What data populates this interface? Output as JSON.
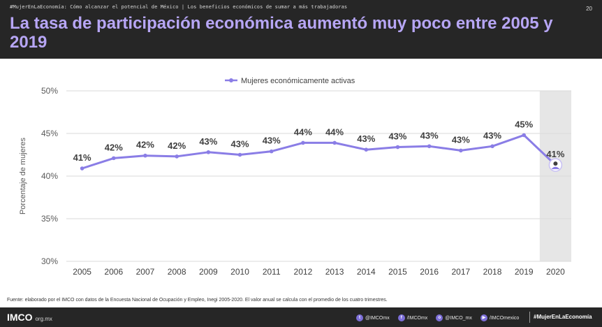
{
  "header": {
    "crumb": "#MujerEnLaEconomía: Cómo alcanzar el potencial de México | Los beneficios económicos de sumar a más trabajadoras",
    "page_number": "20",
    "title": "La tasa de participación económica aumentó muy poco entre 2005 y 2019"
  },
  "chart_data": {
    "type": "line",
    "title": "",
    "xlabel": "",
    "ylabel": "Porcentaje de mujeres",
    "legend_position": "top-center",
    "categories": [
      "2005",
      "2006",
      "2007",
      "2008",
      "2009",
      "2010",
      "2011",
      "2012",
      "2013",
      "2014",
      "2015",
      "2016",
      "2017",
      "2018",
      "2019",
      "2020"
    ],
    "series": [
      {
        "name": "Mujeres económicamente activas",
        "color": "#8a7de6",
        "values": [
          40.9,
          42.1,
          42.4,
          42.3,
          42.8,
          42.5,
          42.9,
          43.9,
          43.9,
          43.1,
          43.4,
          43.5,
          43.0,
          43.5,
          44.8,
          41.3
        ],
        "labels": [
          "41%",
          "42%",
          "42%",
          "42%",
          "43%",
          "43%",
          "43%",
          "44%",
          "44%",
          "43%",
          "43%",
          "43%",
          "43%",
          "43%",
          "45%",
          "41%"
        ]
      }
    ],
    "y_ticks": [
      "30%",
      "35%",
      "40%",
      "45%",
      "50%"
    ],
    "ylim": [
      30,
      50
    ],
    "grid": true,
    "highlight_category": "2020",
    "highlight_color": "#e6e6e6"
  },
  "source": "Fuente: elaborado por el IMCO con datos de la Encuesta Nacional de Ocupación y Empleo, Inegi 2005-2020. El valor anual se calcula con el promedio de los cuatro trimestres.",
  "footer": {
    "logo": "IMCO",
    "logo_domain": "org.mx",
    "socials": [
      {
        "icon": "twitter-icon",
        "glyph": "t",
        "handle": "@IMCOmx"
      },
      {
        "icon": "facebook-icon",
        "glyph": "f",
        "handle": "/IMCOmx"
      },
      {
        "icon": "instagram-icon",
        "glyph": "o",
        "handle": "@IMCO_mx"
      },
      {
        "icon": "youtube-icon",
        "glyph": "▶",
        "handle": "/IMCOmexico"
      }
    ],
    "hashtag": "#MujerEnLaEconomía"
  }
}
